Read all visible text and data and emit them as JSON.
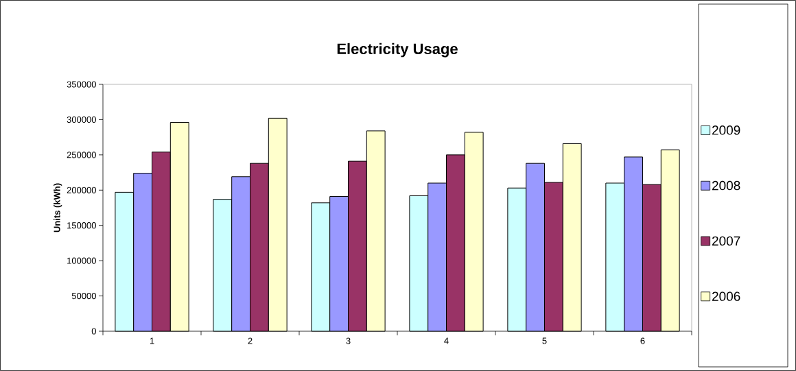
{
  "chart_data": {
    "type": "bar",
    "title": "Electricity Usage",
    "ylabel": "Units (kWh)",
    "categories": [
      "1",
      "2",
      "3",
      "4",
      "5",
      "6"
    ],
    "series": [
      {
        "name": "2009",
        "color": "#ccffff",
        "values": [
          197000,
          187000,
          182000,
          192000,
          203000,
          210000
        ]
      },
      {
        "name": "2008",
        "color": "#9999ff",
        "values": [
          224000,
          219000,
          191000,
          210000,
          238000,
          247000
        ]
      },
      {
        "name": "2007",
        "color": "#993366",
        "values": [
          254000,
          238000,
          241000,
          250000,
          211000,
          208000
        ]
      },
      {
        "name": "2006",
        "color": "#ffffcc",
        "values": [
          296000,
          302000,
          284000,
          282000,
          266000,
          257000
        ]
      }
    ],
    "ylim": [
      0,
      350000
    ],
    "yticks": [
      0,
      50000,
      100000,
      150000,
      200000,
      250000,
      300000,
      350000
    ],
    "legend": "right"
  }
}
